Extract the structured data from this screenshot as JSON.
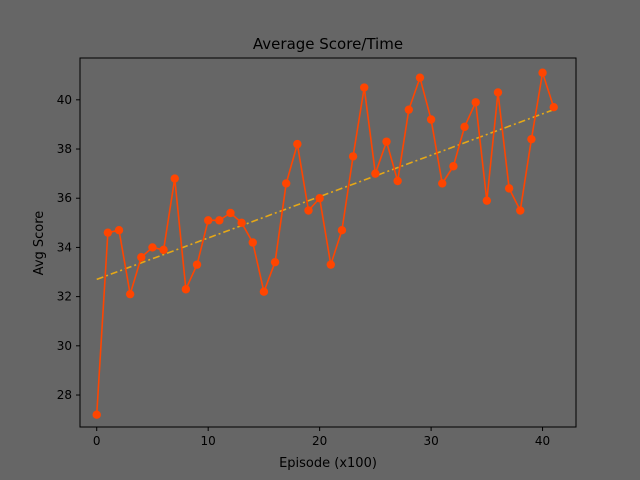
{
  "chart_data": {
    "type": "line",
    "title": "Average Score/Time",
    "xlabel": "Episode (x100)",
    "ylabel": "Avg Score",
    "xlim": [
      -1.5,
      43.0
    ],
    "ylim": [
      26.7,
      41.7
    ],
    "xticks": [
      0,
      10,
      20,
      30,
      40
    ],
    "yticks": [
      28,
      30,
      32,
      34,
      36,
      38,
      40
    ],
    "grid": false,
    "colors": {
      "background": "#666666",
      "series": "#ff4500",
      "trend": "#e6a817",
      "axis": "#000000"
    },
    "series": [
      {
        "x": [
          0,
          1,
          2,
          3,
          4,
          5,
          6,
          7,
          8,
          9,
          10,
          11,
          12,
          13,
          14,
          15,
          16,
          17,
          18,
          19,
          20,
          21,
          22,
          23,
          24,
          25,
          26,
          27,
          28,
          29,
          30,
          31,
          32,
          33,
          34,
          35,
          36,
          37,
          38,
          39,
          40,
          41
        ],
        "values": [
          27.2,
          34.6,
          34.7,
          32.1,
          33.6,
          34.0,
          33.9,
          36.8,
          32.3,
          33.3,
          35.1,
          35.1,
          35.4,
          35.0,
          34.2,
          32.2,
          33.4,
          36.6,
          38.2,
          35.5,
          36.0,
          33.3,
          34.7,
          37.7,
          40.5,
          37.0,
          38.3,
          36.7,
          39.6,
          40.9,
          39.2,
          36.6,
          37.3,
          38.9,
          39.9,
          35.9,
          40.3,
          36.4,
          35.5,
          38.4,
          41.1,
          39.7
        ]
      },
      {
        "style": "dash-dot",
        "x": [
          0,
          41
        ],
        "values": [
          32.7,
          39.6
        ]
      }
    ]
  }
}
